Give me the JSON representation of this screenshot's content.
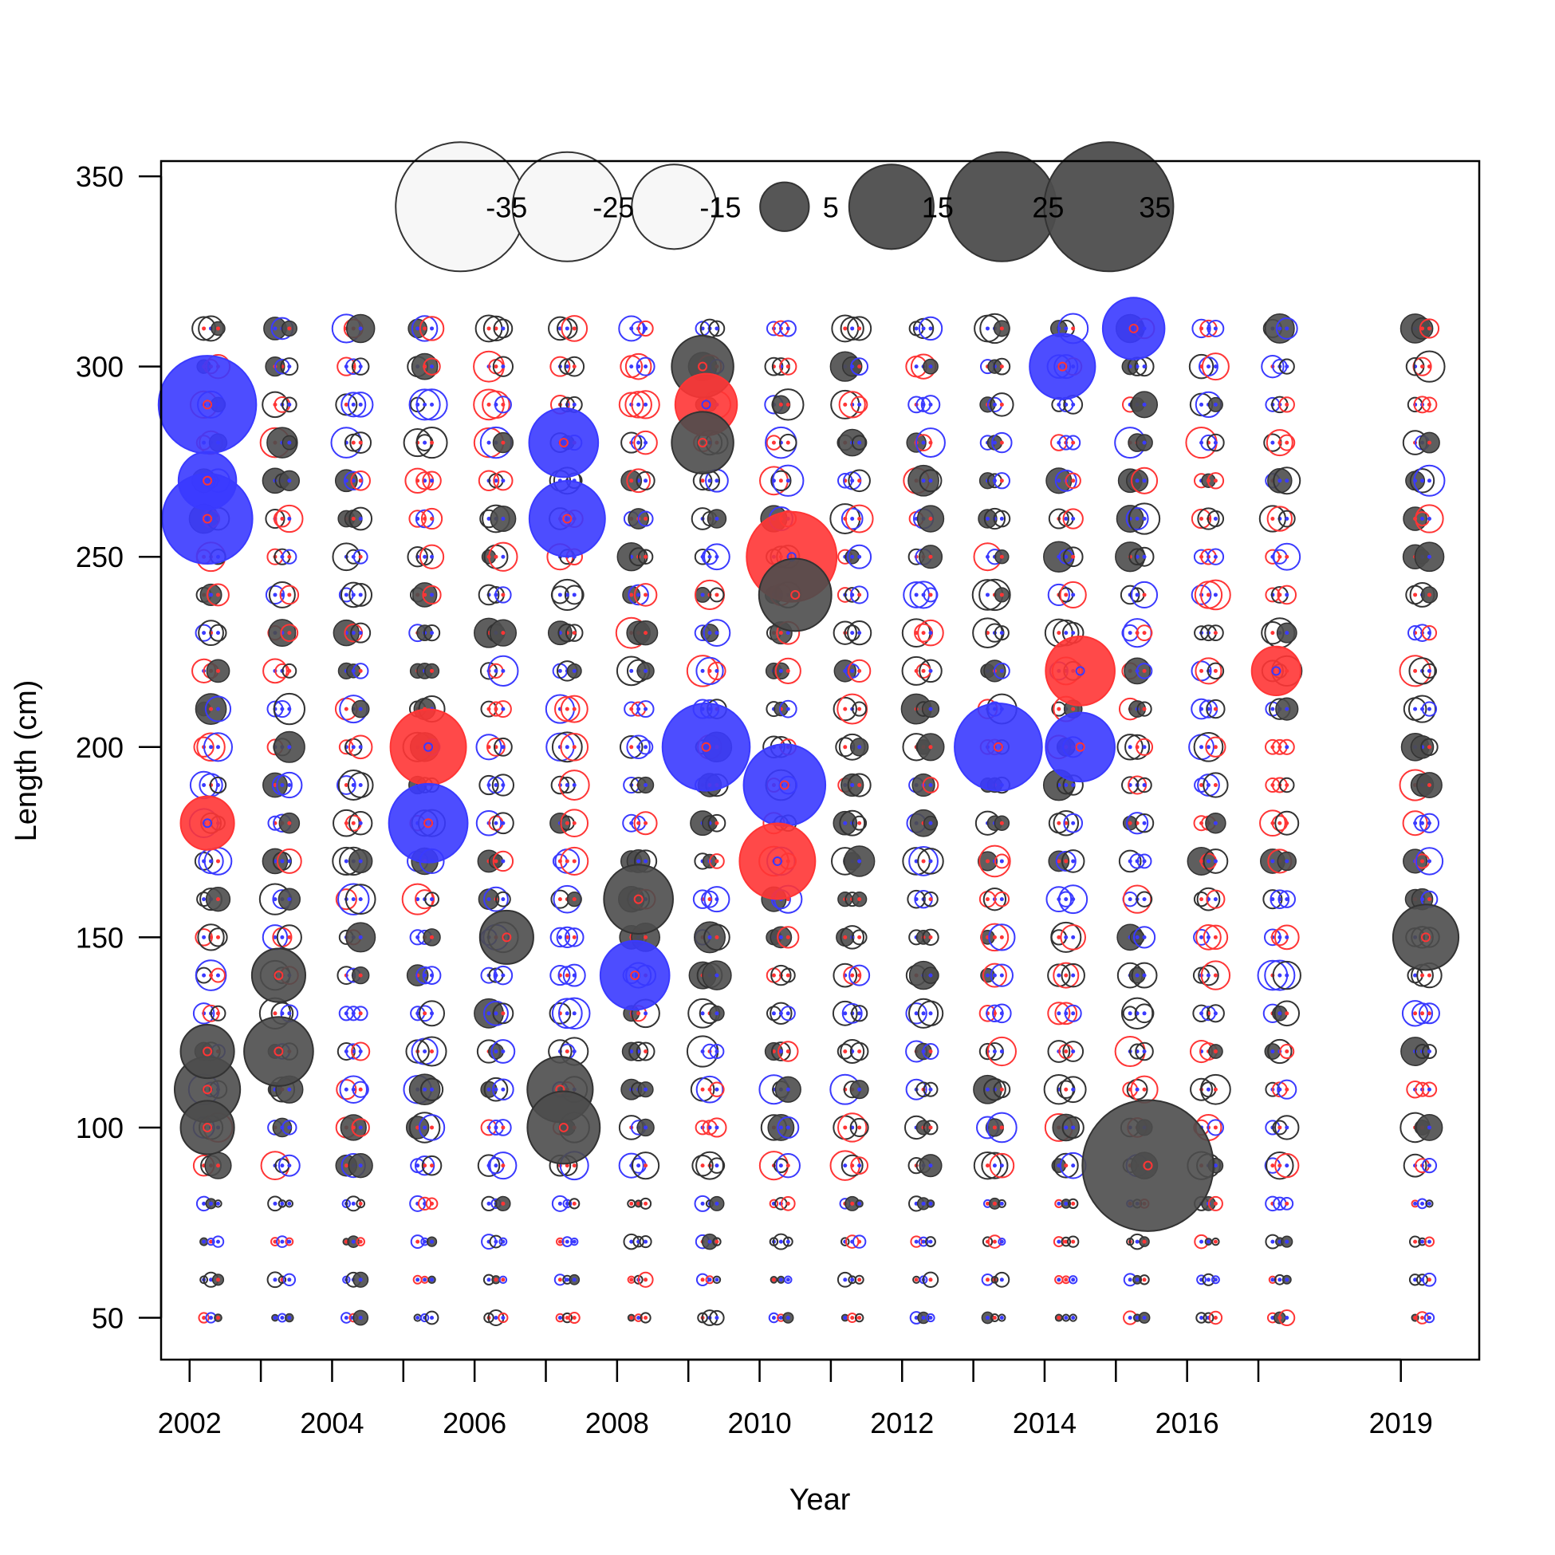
{
  "chart_data": {
    "type": "scatter",
    "subtype": "bubble",
    "title": "",
    "xlabel": "Year",
    "ylabel": "Length (cm)",
    "xlim": [
      2001.6,
      2020.1
    ],
    "ylim": [
      39,
      354
    ],
    "xticks": [
      2002,
      2003,
      2004,
      2005,
      2006,
      2007,
      2008,
      2009,
      2010,
      2011,
      2012,
      2013,
      2014,
      2015,
      2016,
      2017,
      2019
    ],
    "xtick_labels": [
      {
        "x": 2002,
        "label": "2002"
      },
      {
        "x": 2004,
        "label": "2004"
      },
      {
        "x": 2006,
        "label": "2006"
      },
      {
        "x": 2008,
        "label": "2008"
      },
      {
        "x": 2010,
        "label": "2010"
      },
      {
        "x": 2012,
        "label": "2012"
      },
      {
        "x": 2014,
        "label": "2014"
      },
      {
        "x": 2016,
        "label": "2016"
      },
      {
        "x": 2019,
        "label": "2019"
      }
    ],
    "yticks": [
      50,
      100,
      150,
      200,
      250,
      300,
      350
    ],
    "grid": false,
    "legend_position": "top",
    "legend": {
      "values": [
        -35,
        -25,
        -15,
        5,
        15,
        25,
        35
      ],
      "labels": [
        "-35",
        "-25",
        "-15",
        "5",
        "15",
        "25",
        "35"
      ],
      "x": [
        2005.8,
        2007.3,
        2008.8,
        2010.35,
        2011.85,
        2013.4,
        2014.9
      ],
      "y": 342
    },
    "colors": {
      "positive_fill": "#4d4d4d",
      "negative_fill": "#f7f7f7",
      "outline": "#333333",
      "series_blue": "#3a3aff",
      "series_red": "#ff3535"
    },
    "length_bins": [
      50,
      60,
      70,
      80,
      90,
      100,
      110,
      120,
      130,
      140,
      150,
      160,
      170,
      180,
      190,
      200,
      210,
      220,
      230,
      240,
      250,
      260,
      270,
      280,
      290,
      300,
      310
    ],
    "years": [
      2002,
      2003,
      2004,
      2005,
      2006,
      2007,
      2008,
      2009,
      2010,
      2011,
      2012,
      2013,
      2014,
      2015,
      2016,
      2017,
      2019
    ],
    "notable_points": [
      {
        "x": 2002.25,
        "y": 290,
        "value": 20,
        "series": "blue"
      },
      {
        "x": 2002.25,
        "y": 260,
        "value": 17,
        "series": "blue"
      },
      {
        "x": 2002.25,
        "y": 270,
        "value": 7,
        "series": "blue"
      },
      {
        "x": 2002.25,
        "y": 110,
        "value": 9,
        "series": "black"
      },
      {
        "x": 2002.25,
        "y": 120,
        "value": 6,
        "series": "black"
      },
      {
        "x": 2002.25,
        "y": 100,
        "value": 6,
        "series": "black"
      },
      {
        "x": 2002.25,
        "y": 180,
        "value": -6,
        "series": "red"
      },
      {
        "x": 2003.25,
        "y": 120,
        "value": 10,
        "series": "black"
      },
      {
        "x": 2003.25,
        "y": 140,
        "value": 6,
        "series": "black"
      },
      {
        "x": 2005.35,
        "y": 200,
        "value": 12,
        "series": "red"
      },
      {
        "x": 2005.35,
        "y": 180,
        "value": 13,
        "series": "blue"
      },
      {
        "x": 2006.45,
        "y": 150,
        "value": 6,
        "series": "black"
      },
      {
        "x": 2007.25,
        "y": 280,
        "value": 10,
        "series": "blue"
      },
      {
        "x": 2007.3,
        "y": 260,
        "value": 12,
        "series": "blue"
      },
      {
        "x": 2007.2,
        "y": 110,
        "value": 9,
        "series": "black"
      },
      {
        "x": 2007.25,
        "y": 100,
        "value": 11,
        "series": "black"
      },
      {
        "x": 2008.25,
        "y": 140,
        "value": 10,
        "series": "blue"
      },
      {
        "x": 2008.3,
        "y": 160,
        "value": 10,
        "series": "black"
      },
      {
        "x": 2009.2,
        "y": 300,
        "value": 8,
        "series": "black"
      },
      {
        "x": 2009.25,
        "y": 290,
        "value": 8,
        "series": "red"
      },
      {
        "x": 2009.2,
        "y": 280,
        "value": 8,
        "series": "black"
      },
      {
        "x": 2009.25,
        "y": 200,
        "value": 16,
        "series": "blue"
      },
      {
        "x": 2010.45,
        "y": 250,
        "value": 17,
        "series": "red"
      },
      {
        "x": 2010.5,
        "y": 240,
        "value": 11,
        "series": "black"
      },
      {
        "x": 2010.35,
        "y": 190,
        "value": 14,
        "series": "blue"
      },
      {
        "x": 2010.25,
        "y": 170,
        "value": 12,
        "series": "red"
      },
      {
        "x": 2013.35,
        "y": 200,
        "value": 16,
        "series": "blue"
      },
      {
        "x": 2014.25,
        "y": 300,
        "value": 9,
        "series": "blue"
      },
      {
        "x": 2014.5,
        "y": 200,
        "value": 10,
        "series": "blue"
      },
      {
        "x": 2014.5,
        "y": 220,
        "value": 10,
        "series": "red"
      },
      {
        "x": 2015.25,
        "y": 310,
        "value": 8,
        "series": "blue"
      },
      {
        "x": 2015.45,
        "y": 90,
        "value": 36,
        "series": "black"
      },
      {
        "x": 2017.25,
        "y": 220,
        "value": 5,
        "series": "red"
      },
      {
        "x": 2019.35,
        "y": 150,
        "value": 9,
        "series": "black"
      }
    ]
  }
}
